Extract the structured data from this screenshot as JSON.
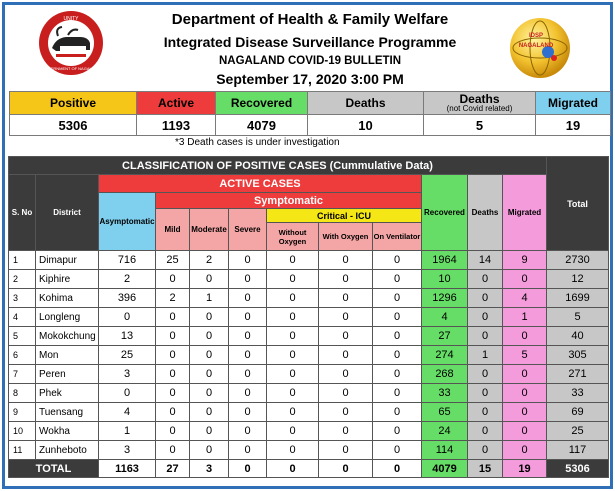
{
  "header": {
    "line1": "Department of Health & Family Welfare",
    "line2": "Integrated Disease Surveillance Programme",
    "line3": "NAGALAND COVID-19 BULLETIN",
    "line4": "September 17, 2020 3:00 PM"
  },
  "logos": {
    "left_top_text": "UNITY",
    "left_bottom_text": "GOVERNMENT OF NAGALAND",
    "right_text1": "IDSP",
    "right_text2": "NAGALAND"
  },
  "summary": {
    "labels": {
      "positive": "Positive",
      "active": "Active",
      "recovered": "Recovered",
      "deaths": "Deaths",
      "deaths_nc": "Deaths",
      "deaths_nc_sub": "(not Covid related)",
      "migrated": "Migrated"
    },
    "values": {
      "positive": "5306",
      "active": "1193",
      "recovered": "4079",
      "deaths": "10",
      "deaths_nc": "5",
      "migrated": "19"
    },
    "note": "*3 Death cases is under investigation"
  },
  "table": {
    "title": "CLASSIFICATION OF POSITIVE CASES (Cummulative Data)",
    "active_cases": "ACTIVE CASES",
    "symptomatic": "Symptomatic",
    "critical_icu": "Critical - ICU",
    "headers": {
      "sno": "S. No",
      "district": "District",
      "asymptomatic": "Asymptomatic",
      "mild": "Mild",
      "moderate": "Moderate",
      "severe": "Severe",
      "without_oxygen": "Without Oxygen",
      "with_oxygen": "With Oxygen",
      "on_ventilator": "On Ventilator",
      "recovered": "Recovered",
      "deaths": "Deaths",
      "migrated": "Migrated",
      "total": "Total"
    },
    "rows": [
      {
        "sno": "1",
        "district": "Dimapur",
        "asym": "716",
        "mild": "25",
        "moderate": "2",
        "severe": "0",
        "wo": "0",
        "wi": "0",
        "vent": "0",
        "rec": "1964",
        "dea": "14",
        "mig": "9",
        "tot": "2730"
      },
      {
        "sno": "2",
        "district": "Kiphire",
        "asym": "2",
        "mild": "0",
        "moderate": "0",
        "severe": "0",
        "wo": "0",
        "wi": "0",
        "vent": "0",
        "rec": "10",
        "dea": "0",
        "mig": "0",
        "tot": "12"
      },
      {
        "sno": "3",
        "district": "Kohima",
        "asym": "396",
        "mild": "2",
        "moderate": "1",
        "severe": "0",
        "wo": "0",
        "wi": "0",
        "vent": "0",
        "rec": "1296",
        "dea": "0",
        "mig": "4",
        "tot": "1699"
      },
      {
        "sno": "4",
        "district": "Longleng",
        "asym": "0",
        "mild": "0",
        "moderate": "0",
        "severe": "0",
        "wo": "0",
        "wi": "0",
        "vent": "0",
        "rec": "4",
        "dea": "0",
        "mig": "1",
        "tot": "5"
      },
      {
        "sno": "5",
        "district": "Mokokchung",
        "asym": "13",
        "mild": "0",
        "moderate": "0",
        "severe": "0",
        "wo": "0",
        "wi": "0",
        "vent": "0",
        "rec": "27",
        "dea": "0",
        "mig": "0",
        "tot": "40"
      },
      {
        "sno": "6",
        "district": "Mon",
        "asym": "25",
        "mild": "0",
        "moderate": "0",
        "severe": "0",
        "wo": "0",
        "wi": "0",
        "vent": "0",
        "rec": "274",
        "dea": "1",
        "mig": "5",
        "tot": "305"
      },
      {
        "sno": "7",
        "district": "Peren",
        "asym": "3",
        "mild": "0",
        "moderate": "0",
        "severe": "0",
        "wo": "0",
        "wi": "0",
        "vent": "0",
        "rec": "268",
        "dea": "0",
        "mig": "0",
        "tot": "271"
      },
      {
        "sno": "8",
        "district": "Phek",
        "asym": "0",
        "mild": "0",
        "moderate": "0",
        "severe": "0",
        "wo": "0",
        "wi": "0",
        "vent": "0",
        "rec": "33",
        "dea": "0",
        "mig": "0",
        "tot": "33"
      },
      {
        "sno": "9",
        "district": "Tuensang",
        "asym": "4",
        "mild": "0",
        "moderate": "0",
        "severe": "0",
        "wo": "0",
        "wi": "0",
        "vent": "0",
        "rec": "65",
        "dea": "0",
        "mig": "0",
        "tot": "69"
      },
      {
        "sno": "10",
        "district": "Wokha",
        "asym": "1",
        "mild": "0",
        "moderate": "0",
        "severe": "0",
        "wo": "0",
        "wi": "0",
        "vent": "0",
        "rec": "24",
        "dea": "0",
        "mig": "0",
        "tot": "25"
      },
      {
        "sno": "11",
        "district": "Zunheboto",
        "asym": "3",
        "mild": "0",
        "moderate": "0",
        "severe": "0",
        "wo": "0",
        "wi": "0",
        "vent": "0",
        "rec": "114",
        "dea": "0",
        "mig": "0",
        "tot": "117"
      }
    ],
    "total": {
      "label": "TOTAL",
      "asym": "1163",
      "mild": "27",
      "moderate": "3",
      "severe": "0",
      "wo": "0",
      "wi": "0",
      "vent": "0",
      "rec": "4079",
      "dea": "15",
      "mig": "19",
      "tot": "5306"
    }
  },
  "colors": {
    "positive": "#f5c518",
    "active": "#ee3b3b",
    "recovered": "#66dd66",
    "deaths": "#c7c7c7",
    "migrated_summary": "#7fd0ef",
    "migrated_table": "#f49bdc",
    "icu": "#f5e616",
    "header_dark": "#3b3b3b",
    "frame": "#2e6fb8"
  }
}
